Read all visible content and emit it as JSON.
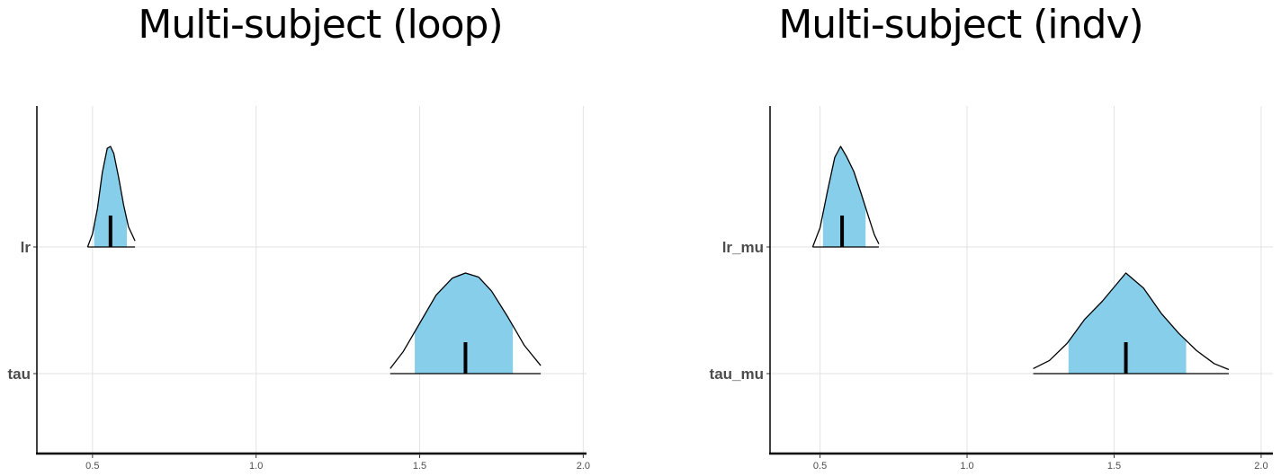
{
  "chart_data": [
    {
      "type": "area",
      "title": "Multi-subject (loop)",
      "xlim": [
        0.33,
        2.01
      ],
      "x_ticks": [
        0.5,
        1.0,
        1.5,
        2.0
      ],
      "x_tick_labels": [
        "0.5",
        "1.0",
        "1.5",
        "2.0"
      ],
      "grid": true,
      "fill_color": "#87CEEB",
      "series": [
        {
          "label": "lr",
          "median": 0.555,
          "fill_range": [
            0.505,
            0.605
          ],
          "line_range": [
            0.485,
            0.63
          ],
          "density": [
            [
              0.485,
              0.0
            ],
            [
              0.5,
              0.13
            ],
            [
              0.515,
              0.38
            ],
            [
              0.53,
              0.74
            ],
            [
              0.545,
              0.98
            ],
            [
              0.555,
              1.0
            ],
            [
              0.565,
              0.93
            ],
            [
              0.58,
              0.69
            ],
            [
              0.595,
              0.42
            ],
            [
              0.61,
              0.2
            ],
            [
              0.63,
              0.06
            ]
          ]
        },
        {
          "label": "tau",
          "median": 1.64,
          "fill_range": [
            1.485,
            1.785
          ],
          "line_range": [
            1.41,
            1.87
          ],
          "density": [
            [
              1.41,
              0.05
            ],
            [
              1.45,
              0.22
            ],
            [
              1.5,
              0.5
            ],
            [
              1.55,
              0.78
            ],
            [
              1.6,
              0.95
            ],
            [
              1.64,
              1.0
            ],
            [
              1.68,
              0.96
            ],
            [
              1.72,
              0.82
            ],
            [
              1.77,
              0.56
            ],
            [
              1.82,
              0.28
            ],
            [
              1.87,
              0.08
            ]
          ]
        }
      ]
    },
    {
      "type": "area",
      "title": "Multi-subject (indv)",
      "xlim": [
        0.33,
        2.04
      ],
      "x_ticks": [
        0.5,
        1.0,
        1.5,
        2.0
      ],
      "x_tick_labels": [
        "0.5",
        "1.0",
        "1.5",
        "2.0"
      ],
      "grid": true,
      "fill_color": "#87CEEB",
      "series": [
        {
          "label": "lr_mu",
          "median": 0.575,
          "fill_range": [
            0.51,
            0.655
          ],
          "line_range": [
            0.475,
            0.7
          ],
          "density": [
            [
              0.475,
              0.0
            ],
            [
              0.5,
              0.19
            ],
            [
              0.525,
              0.55
            ],
            [
              0.55,
              0.89
            ],
            [
              0.57,
              1.0
            ],
            [
              0.59,
              0.9
            ],
            [
              0.615,
              0.75
            ],
            [
              0.64,
              0.53
            ],
            [
              0.665,
              0.3
            ],
            [
              0.685,
              0.12
            ],
            [
              0.7,
              0.03
            ]
          ]
        },
        {
          "label": "tau_mu",
          "median": 1.54,
          "fill_range": [
            1.345,
            1.745
          ],
          "line_range": [
            1.225,
            1.89
          ],
          "density": [
            [
              1.225,
              0.05
            ],
            [
              1.28,
              0.13
            ],
            [
              1.34,
              0.3
            ],
            [
              1.4,
              0.54
            ],
            [
              1.46,
              0.72
            ],
            [
              1.54,
              1.0
            ],
            [
              1.6,
              0.85
            ],
            [
              1.66,
              0.6
            ],
            [
              1.72,
              0.4
            ],
            [
              1.78,
              0.23
            ],
            [
              1.84,
              0.1
            ],
            [
              1.89,
              0.04
            ]
          ]
        }
      ]
    }
  ]
}
